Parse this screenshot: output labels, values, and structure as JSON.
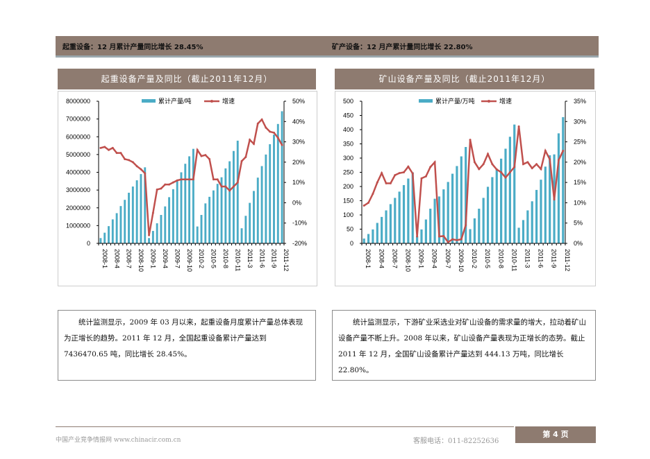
{
  "header": {
    "left": "起重设备：12 月累计产量同比增长 28.45%",
    "right": "矿产设备：12 月产累计量同比增长 22.80%"
  },
  "colors": {
    "bar": "#4bacc6",
    "line": "#c0504d",
    "accent": "#8e7b70"
  },
  "chart_data": [
    {
      "type": "bar+line",
      "title": "起重设备产量及同比（截止2011年12月）",
      "legend": [
        "累计产量/吨",
        "增速"
      ],
      "legend_placement": "top",
      "tick_labels": [
        "2008-1",
        "2008-4",
        "2008-7",
        "2008-10",
        "2009-1",
        "2009-4",
        "2009-7",
        "2009-10",
        "2010-2",
        "2010-5",
        "2010-8",
        "2010-11",
        "2011-3",
        "2011-6",
        "2011-9",
        "2011-12"
      ],
      "yticks_left": [
        "0",
        "1000000",
        "2000000",
        "3000000",
        "4000000",
        "5000000",
        "6000000",
        "7000000",
        "8000000"
      ],
      "yticks_right": [
        "-20%",
        "-10%",
        "0%",
        "10%",
        "20%",
        "30%",
        "40%",
        "50%"
      ],
      "ylim_left": [
        0,
        8000000
      ],
      "ylim_right": [
        -20,
        50
      ],
      "bars": [
        300000,
        600000,
        970000,
        1350000,
        1700000,
        2100000,
        2450000,
        2850000,
        3200000,
        3550000,
        3900000,
        4280000,
        300000,
        700000,
        1130000,
        1600000,
        2080000,
        2600000,
        3050000,
        3500000,
        4000000,
        4480000,
        4900000,
        5320000,
        950000,
        1600000,
        2250000,
        2620000,
        2980000,
        3350000,
        3720000,
        4220000,
        4620000,
        5200000,
        5780000,
        850000,
        1550000,
        2280000,
        2950000,
        3700000,
        4350000,
        5000000,
        5580000,
        6120000,
        6720000,
        7436470.65
      ],
      "growth": [
        27,
        27.5,
        26,
        27,
        24.5,
        24.5,
        21.5,
        21,
        20,
        18,
        16.5,
        14.5,
        -16,
        -5,
        6.5,
        7,
        9,
        9,
        10,
        11,
        11.5,
        11.5,
        11.5,
        11.5,
        26,
        23,
        23.5,
        21.5,
        11.5,
        11.5,
        8,
        8,
        6,
        8,
        10,
        20.5,
        22.5,
        31,
        29,
        39,
        41,
        37,
        35,
        34.5,
        32,
        28.45
      ]
    },
    {
      "type": "bar+line",
      "title": "矿山设备产量及同比（截止2011年12月）",
      "legend": [
        "累计产量/万吨",
        "增速"
      ],
      "legend_placement": "top",
      "tick_labels": [
        "2008-1",
        "2008-4",
        "2008-7",
        "2008-10",
        "2009-1",
        "2009-4",
        "2009-7",
        "2009-10",
        "2010-2",
        "2010-5",
        "2010-8",
        "2010-11",
        "2011-3",
        "2011-6",
        "2011-9",
        "2011-12"
      ],
      "yticks_left": [
        "0",
        "50",
        "100",
        "150",
        "200",
        "250",
        "300",
        "350",
        "400",
        "450",
        "500"
      ],
      "yticks_right": [
        "0%",
        "5%",
        "10%",
        "15%",
        "20%",
        "25%",
        "30%",
        "35%"
      ],
      "ylim_left": [
        0,
        500
      ],
      "ylim_right": [
        0,
        35
      ],
      "bars": [
        17,
        33,
        49,
        72,
        93,
        116,
        138,
        160,
        182,
        205,
        228,
        250,
        25,
        49,
        84,
        122,
        157,
        165,
        190,
        216,
        245,
        272,
        306,
        339,
        50,
        88,
        122,
        160,
        199,
        233,
        262,
        298,
        333,
        375,
        418,
        55,
        82,
        116,
        148,
        188,
        224,
        270,
        310,
        313,
        387,
        444.13
      ],
      "growth": [
        9.3,
        10,
        12.2,
        15,
        17.3,
        14.8,
        14.8,
        16.8,
        17.3,
        17.5,
        18.9,
        17.2,
        1.7,
        16,
        16.5,
        18.8,
        20,
        1.7,
        1.8,
        0.3,
        1,
        0.8,
        1,
        4.5,
        25.5,
        20,
        18.3,
        19.5,
        22,
        19.5,
        18.2,
        17.5,
        16.2,
        17.5,
        18.8,
        28.8,
        19.5,
        20,
        18.5,
        19.5,
        18.3,
        22.8,
        20.7,
        10.8,
        20.5,
        22.8
      ]
    }
  ],
  "text": {
    "left": "统计监测显示，2009 年 03 月以来，起重设备月度累计产量总体表现为正增长的趋势。2011 年 12 月，全国起重设备累计产量达到 7436470.65 吨，同比增长 28.45%。",
    "right": "统计监测显示，下游矿业采选业对矿山设备的需求量的增大，拉动着矿山设备产量不断上升。2008 年以来，矿山设备产量表现为正增长的态势。截止 2011 年 12 月，全国矿山设备累计产量达到 444.13 万吨，同比增长 22.80%。"
  },
  "footer": {
    "site": "中国产业竞争情报网 www.chinacir.com.cn",
    "phone": "客服电话：011-82252636",
    "page": "第 4 页"
  }
}
